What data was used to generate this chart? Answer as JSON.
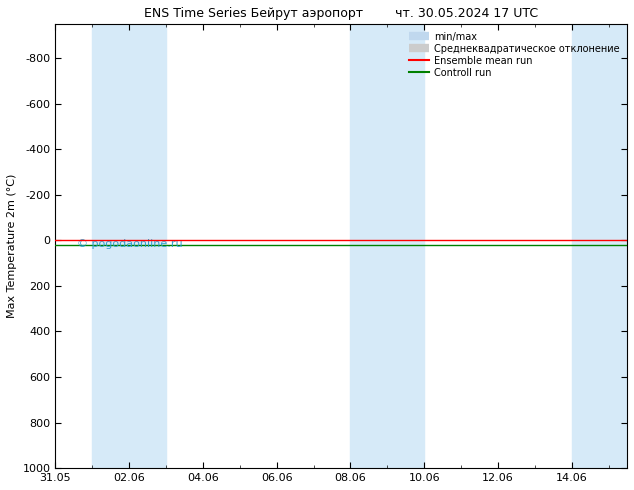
{
  "title": "ENS Time Series Бейрут аэропорт        чт. 30.05.2024 17 UTC",
  "ylabel": "Max Temperature 2m (°C)",
  "ylim_top": -950,
  "ylim_bottom": 1000,
  "yticks": [
    -800,
    -600,
    -400,
    -200,
    0,
    200,
    400,
    600,
    800,
    1000
  ],
  "xtick_labels": [
    "31.05",
    "02.06",
    "04.06",
    "06.06",
    "08.06",
    "10.06",
    "12.06",
    "14.06"
  ],
  "xtick_positions": [
    0,
    2,
    4,
    6,
    8,
    10,
    12,
    14
  ],
  "x_min": 0,
  "x_max": 15.5,
  "shaded_bands": [
    {
      "x_start": 1.0,
      "x_end": 2.0,
      "color": "#d6eaf8"
    },
    {
      "x_start": 2.0,
      "x_end": 3.0,
      "color": "#d6eaf8"
    },
    {
      "x_start": 8.0,
      "x_end": 9.0,
      "color": "#d6eaf8"
    },
    {
      "x_start": 9.0,
      "x_end": 10.0,
      "color": "#d6eaf8"
    },
    {
      "x_start": 14.0,
      "x_end": 15.5,
      "color": "#d6eaf8"
    }
  ],
  "line_y": 20,
  "watermark": "© pogodaonline.ru",
  "legend_items": [
    {
      "label": "min/max",
      "color": "#c0d8ee",
      "type": "hline"
    },
    {
      "label": "Среднеквадратическое отклонение",
      "color": "#cccccc",
      "type": "hline"
    },
    {
      "label": "Ensemble mean run",
      "color": "red",
      "type": "line"
    },
    {
      "label": "Controll run",
      "color": "green",
      "type": "line"
    }
  ],
  "background_color": "#ffffff",
  "title_fontsize": 9,
  "tick_fontsize": 8,
  "ylabel_fontsize": 8
}
